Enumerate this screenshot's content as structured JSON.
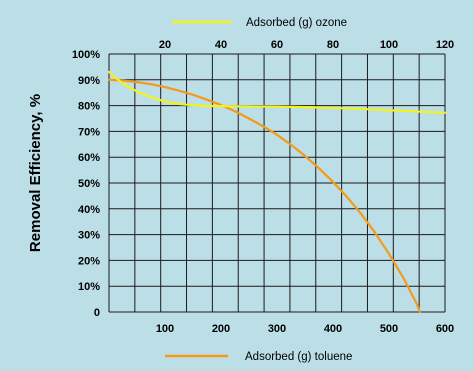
{
  "colors": {
    "background": "#bcdfe7",
    "grid": "#1a1a1a",
    "toluene": "#f39a1c",
    "ozone": "#f2f21c"
  },
  "chart_data": {
    "type": "line",
    "ylabel": "Removal Efficiency, %",
    "y_ticks": [
      "0",
      "10%",
      "20%",
      "30%",
      "40%",
      "50%",
      "60%",
      "70%",
      "80%",
      "90%",
      "100%"
    ],
    "ylim": [
      0,
      100
    ],
    "grid": true,
    "axes": {
      "bottom": {
        "label": "Adsorbed (g) toluene",
        "range": [
          0,
          600
        ],
        "tick_values": [
          100,
          200,
          300,
          400,
          500,
          600
        ],
        "tick_labels": [
          "100",
          "200",
          "300",
          "400",
          "500",
          "600"
        ]
      },
      "top": {
        "label": "Adsorbed (g) ozone",
        "range": [
          0,
          120
        ],
        "tick_values": [
          20,
          40,
          60,
          80,
          100,
          120
        ],
        "tick_labels": [
          "20",
          "40",
          "60",
          "80",
          "100",
          "120"
        ]
      }
    },
    "series": [
      {
        "name": "Adsorbed (g) toluene",
        "axis": "bottom",
        "color": "toluene",
        "x": [
          0,
          25,
          50,
          75,
          100,
          125,
          150,
          175,
          200,
          225,
          250,
          275,
          300,
          325,
          350,
          375,
          400,
          425,
          450,
          475,
          500,
          525,
          550,
          555
        ],
        "y": [
          90,
          89.7,
          89.1,
          88.3,
          87.2,
          85.8,
          84.2,
          82.3,
          80.2,
          77.8,
          75,
          72,
          68.7,
          64.8,
          60.5,
          55.7,
          50.4,
          44.6,
          38.1,
          30.8,
          22.5,
          13.5,
          3,
          0
        ]
      },
      {
        "name": "Adsorbed (g) ozone",
        "axis": "top",
        "color": "ozone",
        "x": [
          0,
          5,
          10,
          15,
          20,
          25,
          30,
          35,
          40,
          50,
          60,
          70,
          80,
          90,
          100,
          110,
          120
        ],
        "y": [
          93,
          88.5,
          85.5,
          83.2,
          81.6,
          80.6,
          80.1,
          79.9,
          79.8,
          79.7,
          79.6,
          79.4,
          79.1,
          78.7,
          78.2,
          77.7,
          77.2
        ]
      }
    ],
    "legend": [
      "top-center",
      "bottom-center"
    ]
  }
}
